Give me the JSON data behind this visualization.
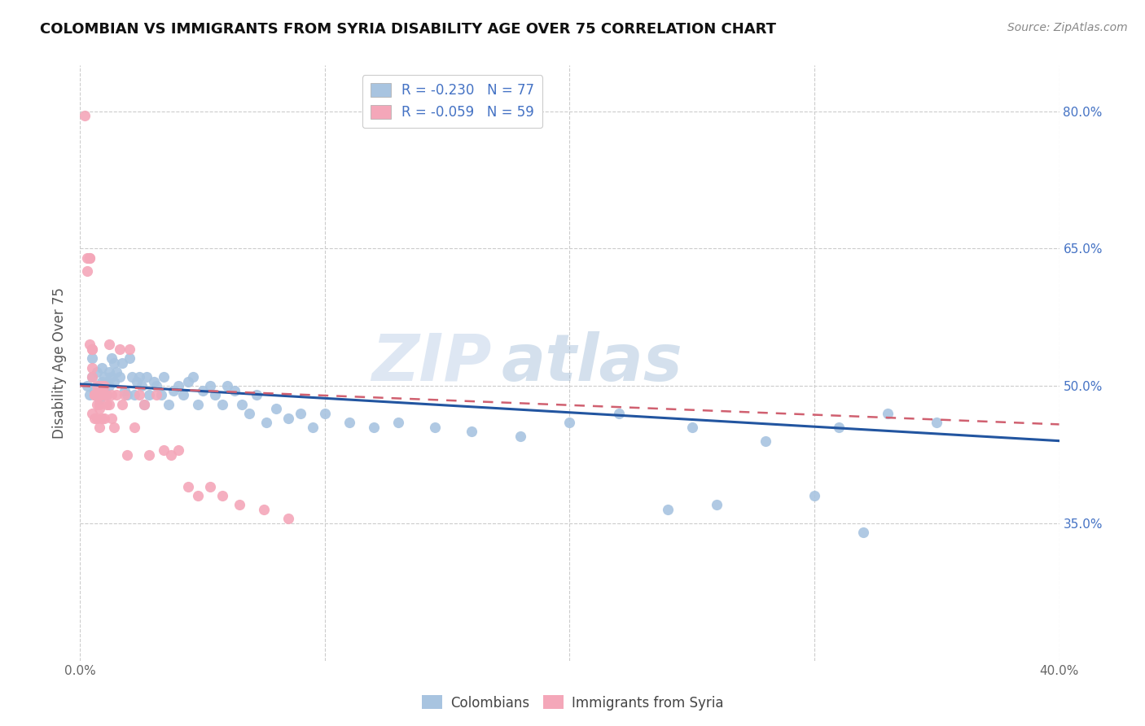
{
  "title": "COLOMBIAN VS IMMIGRANTS FROM SYRIA DISABILITY AGE OVER 75 CORRELATION CHART",
  "source": "Source: ZipAtlas.com",
  "ylabel": "Disability Age Over 75",
  "xlim": [
    0.0,
    0.4
  ],
  "ylim": [
    0.2,
    0.85
  ],
  "yticks": [
    0.35,
    0.5,
    0.65,
    0.8
  ],
  "xticks": [
    0.0,
    0.1,
    0.2,
    0.3,
    0.4
  ],
  "xtick_labels": [
    "0.0%",
    "",
    "",
    "",
    "40.0%"
  ],
  "right_ytick_labels": [
    "35.0%",
    "50.0%",
    "65.0%",
    "80.0%"
  ],
  "color_blue": "#a8c4e0",
  "color_pink": "#f4a7b9",
  "line_blue": "#2255a0",
  "line_pink": "#d06070",
  "watermark": "ZIPatlas",
  "colombians_x": [
    0.003,
    0.004,
    0.005,
    0.005,
    0.006,
    0.007,
    0.008,
    0.008,
    0.009,
    0.009,
    0.01,
    0.01,
    0.011,
    0.011,
    0.012,
    0.012,
    0.013,
    0.013,
    0.014,
    0.014,
    0.015,
    0.016,
    0.017,
    0.018,
    0.019,
    0.02,
    0.021,
    0.022,
    0.023,
    0.024,
    0.025,
    0.026,
    0.027,
    0.028,
    0.03,
    0.031,
    0.033,
    0.034,
    0.036,
    0.038,
    0.04,
    0.042,
    0.044,
    0.046,
    0.048,
    0.05,
    0.053,
    0.055,
    0.058,
    0.06,
    0.063,
    0.066,
    0.069,
    0.072,
    0.076,
    0.08,
    0.085,
    0.09,
    0.095,
    0.1,
    0.11,
    0.12,
    0.13,
    0.145,
    0.16,
    0.18,
    0.2,
    0.22,
    0.25,
    0.28,
    0.31,
    0.33,
    0.35,
    0.3,
    0.26,
    0.24,
    0.32
  ],
  "colombians_y": [
    0.5,
    0.49,
    0.51,
    0.53,
    0.495,
    0.515,
    0.5,
    0.485,
    0.52,
    0.505,
    0.495,
    0.51,
    0.49,
    0.505,
    0.515,
    0.5,
    0.53,
    0.51,
    0.525,
    0.505,
    0.515,
    0.51,
    0.525,
    0.495,
    0.49,
    0.53,
    0.51,
    0.49,
    0.505,
    0.51,
    0.5,
    0.48,
    0.51,
    0.49,
    0.505,
    0.5,
    0.49,
    0.51,
    0.48,
    0.495,
    0.5,
    0.49,
    0.505,
    0.51,
    0.48,
    0.495,
    0.5,
    0.49,
    0.48,
    0.5,
    0.495,
    0.48,
    0.47,
    0.49,
    0.46,
    0.475,
    0.465,
    0.47,
    0.455,
    0.47,
    0.46,
    0.455,
    0.46,
    0.455,
    0.45,
    0.445,
    0.46,
    0.47,
    0.455,
    0.44,
    0.455,
    0.47,
    0.46,
    0.38,
    0.37,
    0.365,
    0.34
  ],
  "syria_x": [
    0.002,
    0.003,
    0.003,
    0.004,
    0.004,
    0.004,
    0.005,
    0.005,
    0.005,
    0.005,
    0.005,
    0.006,
    0.006,
    0.006,
    0.006,
    0.007,
    0.007,
    0.007,
    0.007,
    0.007,
    0.008,
    0.008,
    0.008,
    0.008,
    0.008,
    0.009,
    0.009,
    0.009,
    0.01,
    0.01,
    0.01,
    0.011,
    0.011,
    0.012,
    0.012,
    0.013,
    0.013,
    0.014,
    0.015,
    0.016,
    0.017,
    0.018,
    0.019,
    0.02,
    0.022,
    0.024,
    0.026,
    0.028,
    0.031,
    0.034,
    0.037,
    0.04,
    0.044,
    0.048,
    0.053,
    0.058,
    0.065,
    0.075,
    0.085
  ],
  "syria_y": [
    0.795,
    0.64,
    0.625,
    0.64,
    0.64,
    0.545,
    0.54,
    0.54,
    0.52,
    0.51,
    0.47,
    0.49,
    0.49,
    0.49,
    0.465,
    0.5,
    0.49,
    0.49,
    0.48,
    0.465,
    0.5,
    0.49,
    0.48,
    0.475,
    0.455,
    0.5,
    0.49,
    0.465,
    0.5,
    0.49,
    0.465,
    0.49,
    0.48,
    0.545,
    0.48,
    0.49,
    0.465,
    0.455,
    0.49,
    0.54,
    0.48,
    0.49,
    0.425,
    0.54,
    0.455,
    0.49,
    0.48,
    0.425,
    0.49,
    0.43,
    0.425,
    0.43,
    0.39,
    0.38,
    0.39,
    0.38,
    0.37,
    0.365,
    0.355
  ]
}
